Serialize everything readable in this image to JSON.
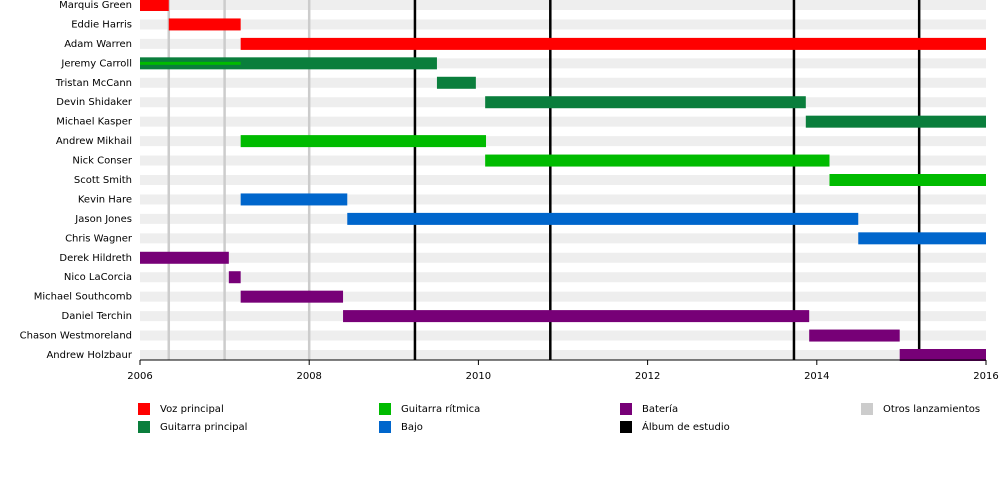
{
  "chart_data": {
    "type": "timeline",
    "categories": [
      "Marquis Green",
      "Eddie Harris",
      "Adam Warren",
      "Jeremy Carroll",
      "Tristan McCann",
      "Devin Shidaker",
      "Michael Kasper",
      "Andrew Mikhail",
      "Nick Conser",
      "Scott Smith",
      "Kevin Hare",
      "Jason Jones",
      "Chris Wagner",
      "Derek Hildreth",
      "Nico LaCorcia",
      "Michael Southcomb",
      "Daniel Terchin",
      "Chason Westmoreland",
      "Andrew Holzbaur"
    ],
    "series": [
      {
        "name": "Voz principal",
        "color": "#ff0000",
        "values": [
          [
            2006.0,
            2006.34
          ],
          [
            2006.34,
            2007.19
          ],
          [
            2007.19,
            2016.0
          ],
          null,
          null,
          null,
          null,
          null,
          null,
          null,
          null,
          null,
          null,
          null,
          null,
          null,
          null,
          null,
          null
        ]
      },
      {
        "name": "Guitarra principal",
        "color": "#0a7e3c",
        "values": [
          null,
          null,
          null,
          [
            2006.0,
            2009.51
          ],
          [
            2009.51,
            2009.97
          ],
          [
            2010.08,
            2013.87
          ],
          [
            2013.87,
            2016.0
          ],
          null,
          null,
          null,
          null,
          null,
          null,
          null,
          null,
          null,
          null,
          null,
          null
        ]
      },
      {
        "name": "Guitarra rítmica",
        "color": "#00bb00",
        "values": [
          null,
          null,
          null,
          [
            2006.0,
            2007.19
          ],
          null,
          null,
          null,
          [
            2007.19,
            2010.09
          ],
          [
            2010.08,
            2014.15
          ],
          [
            2014.15,
            2016.0
          ],
          null,
          null,
          null,
          null,
          null,
          null,
          null,
          null,
          null
        ]
      },
      {
        "name": "Bajo",
        "color": "#0066cc",
        "values": [
          null,
          null,
          null,
          null,
          null,
          null,
          null,
          null,
          null,
          null,
          [
            2007.19,
            2008.45
          ],
          [
            2008.45,
            2014.49
          ],
          [
            2014.49,
            2016.0
          ],
          null,
          null,
          null,
          null,
          null,
          null
        ]
      },
      {
        "name": "Batería",
        "color": "#770077",
        "values": [
          null,
          null,
          null,
          null,
          null,
          null,
          null,
          null,
          null,
          null,
          null,
          null,
          null,
          [
            2006.0,
            2007.05
          ],
          [
            2007.05,
            2007.19
          ],
          [
            2007.19,
            2008.4
          ],
          [
            2008.4,
            2013.91
          ],
          [
            2013.91,
            2014.98
          ],
          [
            2014.98,
            2016.0
          ]
        ]
      }
    ],
    "events": [
      {
        "name": "Otros lanzamientos",
        "color": "#cccccc",
        "x": [
          2006.34,
          2007.0,
          2008.0
        ]
      },
      {
        "name": "Álbum de estudio",
        "color": "#000000",
        "x": [
          2009.25,
          2010.85,
          2013.73,
          2015.21
        ]
      }
    ],
    "xlim": [
      2006,
      2016
    ],
    "xticks": [
      2006,
      2008,
      2010,
      2012,
      2014,
      2016
    ]
  }
}
